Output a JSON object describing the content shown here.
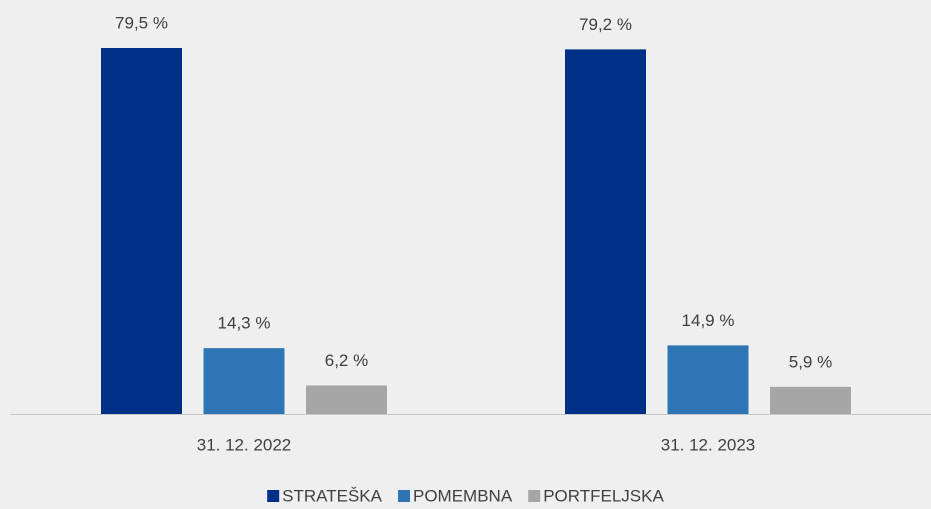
{
  "chart_data": {
    "type": "bar",
    "categories": [
      "31. 12. 2022",
      "31. 12. 2023"
    ],
    "series": [
      {
        "name": "STRATEŠKA",
        "color": "#002f87",
        "values": [
          79.5,
          79.2
        ],
        "value_labels": [
          "79,5 %",
          "79,2 %"
        ]
      },
      {
        "name": "POMEMBNA",
        "color": "#2e75b6",
        "values": [
          14.3,
          14.9
        ],
        "value_labels": [
          "14,3 %",
          "14,9 %"
        ]
      },
      {
        "name": "PORTFELJSKA",
        "color": "#a6a6a6",
        "values": [
          6.2,
          5.9
        ],
        "value_labels": [
          "6,2 %",
          "5,9 %"
        ]
      }
    ],
    "legend": "bottom"
  }
}
